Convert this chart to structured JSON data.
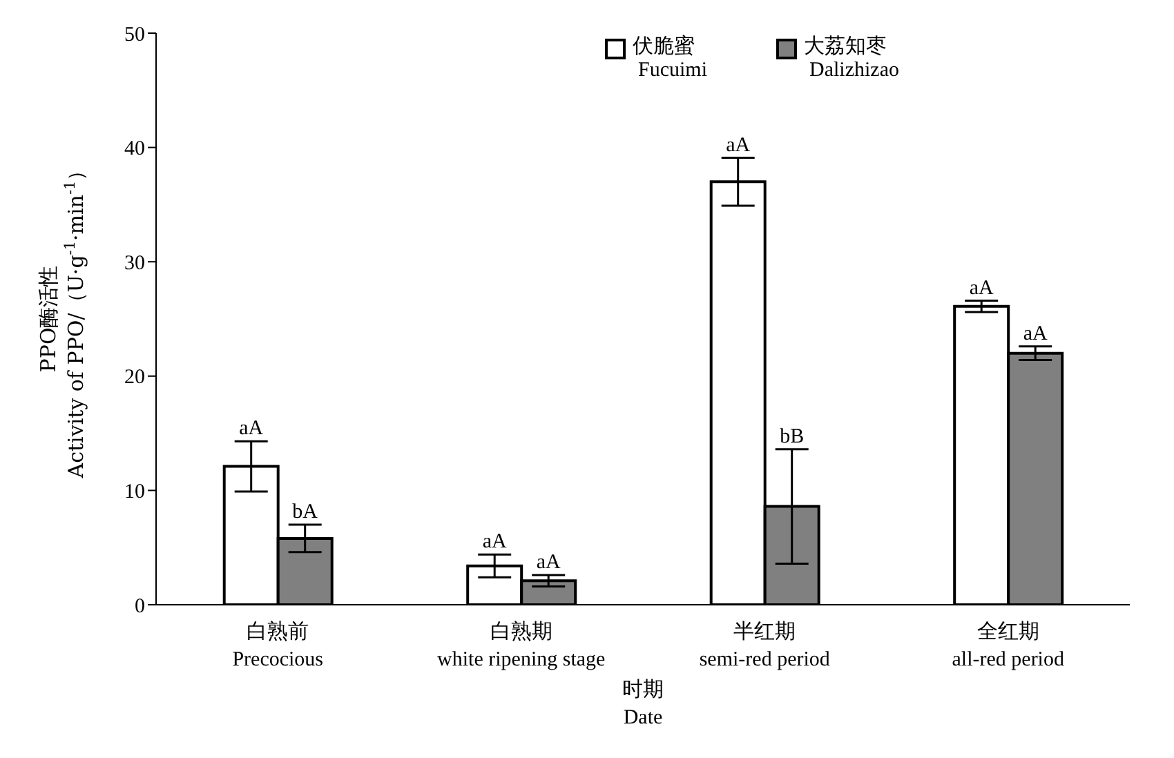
{
  "chart_data": {
    "type": "bar",
    "categories": [
      "白熟前\nPrecocious",
      "白熟期\nwhite ripening stage",
      "半红期\nsemi-red period",
      "全红期\nall-red period"
    ],
    "xlabel": "时期\nDate",
    "ylabel": "PPO酶活性\nActivity of PPO/（U·g$^{-1}$·min$^{-1}$）",
    "series": [
      {
        "name": "伏脆蜜\nFucuimi",
        "color": "#ffffff",
        "values": [
          12.1,
          3.4,
          37,
          26.1
        ],
        "errors": [
          2.2,
          1,
          2.1,
          0.5
        ],
        "value_labels": [
          "aA",
          "aA",
          "aA",
          "aA"
        ]
      },
      {
        "name": "大荔知枣\nDalizhizao",
        "color": "#808080",
        "values": [
          5.8,
          2.1,
          8.6,
          22
        ],
        "errors": [
          1.2,
          0.5,
          5,
          0.6
        ],
        "value_labels": [
          "bA",
          "aA",
          "bB",
          "aA"
        ]
      }
    ],
    "ylim": [
      0,
      50
    ],
    "yticks": [
      0,
      10,
      20,
      30,
      40,
      50
    ],
    "grid": false,
    "legend": "top right"
  }
}
